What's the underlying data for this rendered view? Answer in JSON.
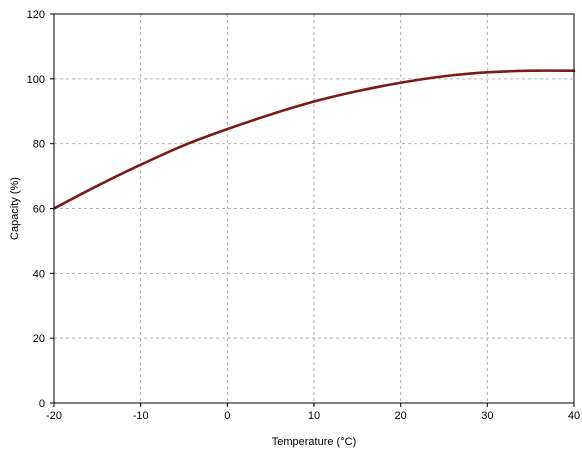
{
  "chart_data": {
    "type": "line",
    "title": "",
    "xlabel": "Temperature (°C)",
    "ylabel": "Capacity (%)",
    "xlim": [
      -20,
      40
    ],
    "ylim": [
      0,
      120
    ],
    "x_ticks": [
      -20,
      -10,
      0,
      10,
      20,
      30,
      40
    ],
    "y_ticks": [
      0,
      20,
      40,
      60,
      80,
      100,
      120
    ],
    "grid": true,
    "legend": "none",
    "colors": {
      "series": "#7b1a1a",
      "grid": "#b4b4b4",
      "axis": "#000000"
    },
    "series": [
      {
        "x": [
          -20,
          -15,
          -10,
          -5,
          0,
          5,
          10,
          15,
          20,
          25,
          30,
          35,
          40
        ],
        "y": [
          60,
          67,
          73.5,
          79.5,
          84.5,
          89,
          93,
          96.2,
          98.8,
          100.8,
          102,
          102.5,
          102.5
        ]
      }
    ]
  }
}
